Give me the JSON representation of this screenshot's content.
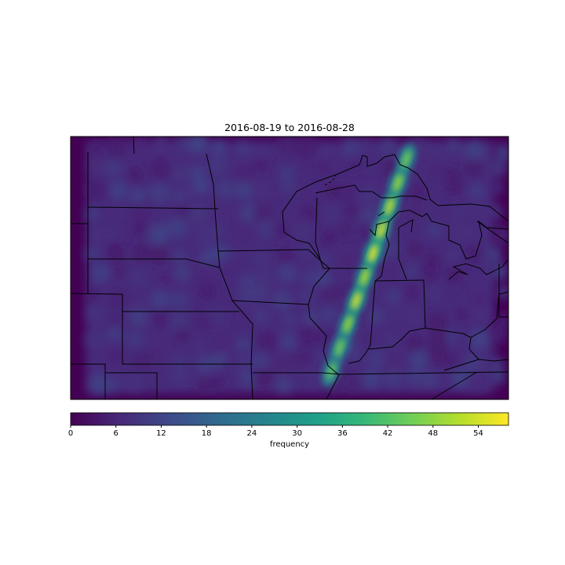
{
  "title": "2016-08-19 to 2016-08-28",
  "colorbar": {
    "label": "frequency",
    "min": 0,
    "max": 58,
    "ticks": [
      "0",
      "6",
      "12",
      "18",
      "24",
      "30",
      "36",
      "42",
      "48",
      "54"
    ],
    "colormap": "viridis",
    "colors": [
      "#440154",
      "#482878",
      "#3e4989",
      "#31688e",
      "#26828e",
      "#1f9e89",
      "#35b779",
      "#6ece58",
      "#b5de2b",
      "#fde725"
    ]
  },
  "chart_data": {
    "type": "heatmap",
    "title": "2016-08-19 to 2016-08-28",
    "colorbar_label": "frequency",
    "value_range": [
      0,
      58
    ],
    "background_level": 8,
    "hotspot_band": [
      {
        "segment": 1,
        "value": 46
      },
      {
        "segment": 2,
        "value": 50
      },
      {
        "segment": 3,
        "value": 54
      },
      {
        "segment": 4,
        "value": 56
      },
      {
        "segment": 5,
        "value": 58
      },
      {
        "segment": 6,
        "value": 52
      },
      {
        "segment": 7,
        "value": 56
      },
      {
        "segment": 8,
        "value": 50
      },
      {
        "segment": 9,
        "value": 46
      },
      {
        "segment": 10,
        "value": 44
      }
    ]
  }
}
